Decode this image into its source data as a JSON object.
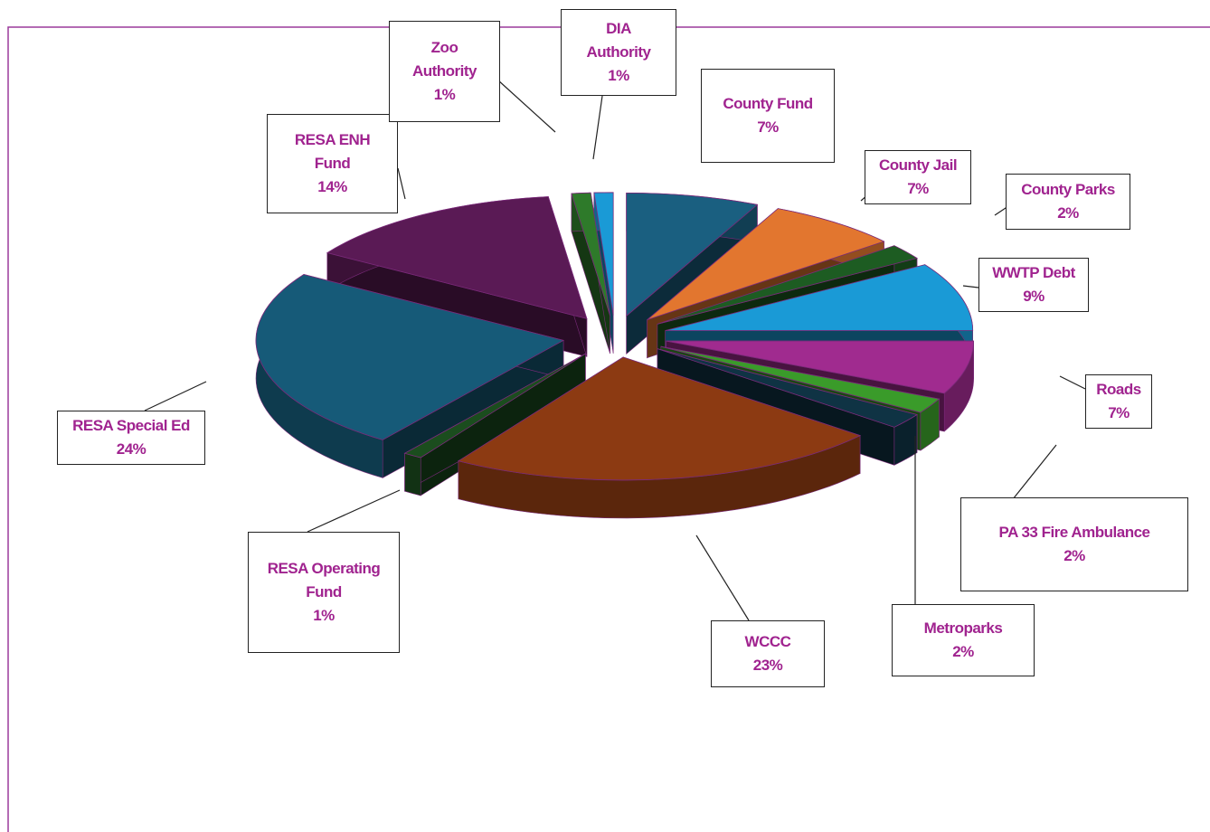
{
  "chart_data": {
    "type": "pie",
    "style": "3D exploded",
    "legend": "none (callout data labels)",
    "slices": [
      {
        "label": "County Fund",
        "pct_label": "7%",
        "value": 7,
        "color": "#1a5f80"
      },
      {
        "label": "County Jail",
        "pct_label": "7%",
        "value": 7,
        "color": "#e2762f"
      },
      {
        "label": "County Parks",
        "pct_label": "2%",
        "value": 2,
        "color": "#1d5c22"
      },
      {
        "label": "WWTP Debt",
        "pct_label": "9%",
        "value": 9,
        "color": "#1a9ad6"
      },
      {
        "label": "Roads",
        "pct_label": "7%",
        "value": 7,
        "color": "#a02b8f"
      },
      {
        "label": "PA 33 Fire Ambulance",
        "pct_label": "2%",
        "value": 2,
        "color": "#3a9b2a"
      },
      {
        "label": "Metroparks",
        "pct_label": "2%",
        "value": 2,
        "color": "#0f3344"
      },
      {
        "label": "WCCC",
        "pct_label": "23%",
        "value": 23,
        "color": "#8c3a12"
      },
      {
        "label": "RESA Operating Fund",
        "pct_label": "1%",
        "value": 1,
        "color": "#1b4d1e"
      },
      {
        "label": "RESA Special Ed",
        "pct_label": "24%",
        "value": 24,
        "color": "#165a78"
      },
      {
        "label": "RESA ENH Fund",
        "pct_label": "14%",
        "value": 14,
        "color": "#5a1a55"
      },
      {
        "label": "Zoo Authority",
        "pct_label": "1%",
        "value": 1,
        "color": "#2e7a2a"
      },
      {
        "label": "DIA Authority",
        "pct_label": "1%",
        "value": 1,
        "color": "#1a9ad6"
      }
    ]
  },
  "colors": {
    "label_text": "#a0238f",
    "frame_border": "#9b3a9b"
  }
}
